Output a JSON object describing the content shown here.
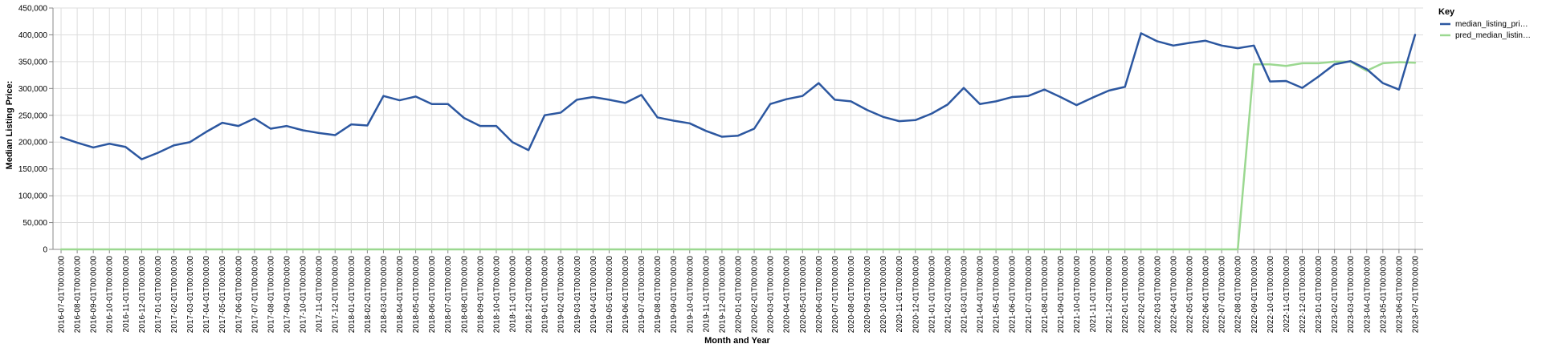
{
  "chart_data": {
    "type": "line",
    "xlabel": "Month and Year",
    "ylabel": "Median Listing Price:",
    "ylim": [
      0,
      450000
    ],
    "yticks": [
      "0",
      "50,000",
      "100,000",
      "150,000",
      "200,000",
      "250,000",
      "300,000",
      "350,000",
      "400,000",
      "450,000"
    ],
    "grid": true,
    "legend_position": "top-right",
    "legend_title": "Key",
    "x": [
      "2016-07-01T00:00:00",
      "2016-08-01T00:00:00",
      "2016-09-01T00:00:00",
      "2016-10-01T00:00:00",
      "2016-11-01T00:00:00",
      "2016-12-01T00:00:00",
      "2017-01-01T00:00:00",
      "2017-02-01T00:00:00",
      "2017-03-01T00:00:00",
      "2017-04-01T00:00:00",
      "2017-05-01T00:00:00",
      "2017-06-01T00:00:00",
      "2017-07-01T00:00:00",
      "2017-08-01T00:00:00",
      "2017-09-01T00:00:00",
      "2017-10-01T00:00:00",
      "2017-11-01T00:00:00",
      "2017-12-01T00:00:00",
      "2018-01-01T00:00:00",
      "2018-02-01T00:00:00",
      "2018-03-01T00:00:00",
      "2018-04-01T00:00:00",
      "2018-05-01T00:00:00",
      "2018-06-01T00:00:00",
      "2018-07-01T00:00:00",
      "2018-08-01T00:00:00",
      "2018-09-01T00:00:00",
      "2018-10-01T00:00:00",
      "2018-11-01T00:00:00",
      "2018-12-01T00:00:00",
      "2019-01-01T00:00:00",
      "2019-02-01T00:00:00",
      "2019-03-01T00:00:00",
      "2019-04-01T00:00:00",
      "2019-05-01T00:00:00",
      "2019-06-01T00:00:00",
      "2019-07-01T00:00:00",
      "2019-08-01T00:00:00",
      "2019-09-01T00:00:00",
      "2019-10-01T00:00:00",
      "2019-11-01T00:00:00",
      "2019-12-01T00:00:00",
      "2020-01-01T00:00:00",
      "2020-02-01T00:00:00",
      "2020-03-01T00:00:00",
      "2020-04-01T00:00:00",
      "2020-05-01T00:00:00",
      "2020-06-01T00:00:00",
      "2020-07-01T00:00:00",
      "2020-08-01T00:00:00",
      "2020-09-01T00:00:00",
      "2020-10-01T00:00:00",
      "2020-11-01T00:00:00",
      "2020-12-01T00:00:00",
      "2021-01-01T00:00:00",
      "2021-02-01T00:00:00",
      "2021-03-01T00:00:00",
      "2021-04-01T00:00:00",
      "2021-05-01T00:00:00",
      "2021-06-01T00:00:00",
      "2021-07-01T00:00:00",
      "2021-08-01T00:00:00",
      "2021-09-01T00:00:00",
      "2021-10-01T00:00:00",
      "2021-11-01T00:00:00",
      "2021-12-01T00:00:00",
      "2022-01-01T00:00:00",
      "2022-02-01T00:00:00",
      "2022-03-01T00:00:00",
      "2022-04-01T00:00:00",
      "2022-05-01T00:00:00",
      "2022-06-01T00:00:00",
      "2022-07-01T00:00:00",
      "2022-08-01T00:00:00",
      "2022-09-01T00:00:00",
      "2022-10-01T00:00:00",
      "2022-11-01T00:00:00",
      "2022-12-01T00:00:00",
      "2023-01-01T00:00:00",
      "2023-02-01T00:00:00",
      "2023-03-01T00:00:00",
      "2023-04-01T00:00:00",
      "2023-05-01T00:00:00",
      "2023-06-01T00:00:00",
      "2023-07-01T00:00:00"
    ],
    "series": [
      {
        "name": "median_listing_pri…",
        "color": "#2c57a0",
        "values": [
          209000,
          199000,
          190000,
          197000,
          191000,
          168000,
          180000,
          194000,
          200000,
          219000,
          236000,
          230000,
          244000,
          225000,
          230000,
          222000,
          217000,
          213000,
          233000,
          231000,
          286000,
          278000,
          285000,
          271000,
          271000,
          245000,
          230000,
          230000,
          200000,
          185000,
          250000,
          255000,
          279000,
          284000,
          279000,
          273000,
          288000,
          246000,
          240000,
          235000,
          221000,
          210000,
          212000,
          225000,
          271000,
          280000,
          286000,
          310000,
          279000,
          276000,
          260000,
          247000,
          239000,
          241000,
          253000,
          270000,
          301000,
          271000,
          276000,
          284000,
          286000,
          298000,
          284000,
          269000,
          283000,
          296000,
          303000,
          403000,
          388000,
          380000,
          385000,
          389000,
          380000,
          375000,
          380000,
          313000,
          314000,
          301000,
          322000,
          345000,
          351000,
          336000,
          310000,
          298000,
          400000
        ]
      },
      {
        "name": "pred_median_listin…",
        "color": "#9bd890",
        "values": [
          0,
          0,
          0,
          0,
          0,
          0,
          0,
          0,
          0,
          0,
          0,
          0,
          0,
          0,
          0,
          0,
          0,
          0,
          0,
          0,
          0,
          0,
          0,
          0,
          0,
          0,
          0,
          0,
          0,
          0,
          0,
          0,
          0,
          0,
          0,
          0,
          0,
          0,
          0,
          0,
          0,
          0,
          0,
          0,
          0,
          0,
          0,
          0,
          0,
          0,
          0,
          0,
          0,
          0,
          0,
          0,
          0,
          0,
          0,
          0,
          0,
          0,
          0,
          0,
          0,
          0,
          0,
          0,
          0,
          0,
          0,
          0,
          0,
          0,
          345000,
          345000,
          342000,
          347000,
          347000,
          350000,
          350000,
          333000,
          347000,
          349000,
          348000
        ]
      }
    ]
  }
}
